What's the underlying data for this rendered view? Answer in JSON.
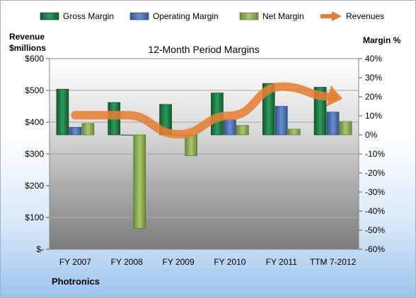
{
  "chart_data": {
    "type": "bar",
    "title": "12-Month Period Margins",
    "left_axis_title": [
      "Revenue",
      "$millions"
    ],
    "right_axis_title": "Margin %",
    "footer_label": "Photronics",
    "categories": [
      "FY 2007",
      "FY 2008",
      "FY 2009",
      "FY 2010",
      "FY 2011",
      "TTM 7-2012"
    ],
    "left_ticks": [
      "$600",
      "$500",
      "$400",
      "$300",
      "$200",
      "$100",
      "$-"
    ],
    "left_ylim": [
      0,
      600
    ],
    "right_ticks": [
      "40%",
      "30%",
      "20%",
      "10%",
      "0%",
      "-10%",
      "-20%",
      "-30%",
      "-40%",
      "-50%",
      "-60%"
    ],
    "right_ylim": [
      -60,
      40
    ],
    "legend_position": "top",
    "series": [
      {
        "name": "Gross Margin",
        "axis": "right",
        "kind": "bar",
        "color": "#1e7a45",
        "values": [
          24,
          17,
          16,
          22,
          27,
          25
        ]
      },
      {
        "name": "Operating Margin",
        "axis": "right",
        "kind": "bar",
        "color": "#4a6fb0",
        "values": [
          4,
          0,
          0,
          8,
          15,
          12
        ]
      },
      {
        "name": "Net Margin",
        "axis": "right",
        "kind": "bar",
        "color": "#8dac55",
        "values": [
          6,
          -49,
          -11,
          5,
          3,
          7
        ]
      },
      {
        "name": "Revenues",
        "axis": "left",
        "kind": "line",
        "color": "#e67e32",
        "values": [
          422,
          422,
          362,
          420,
          512,
          480
        ]
      }
    ]
  }
}
